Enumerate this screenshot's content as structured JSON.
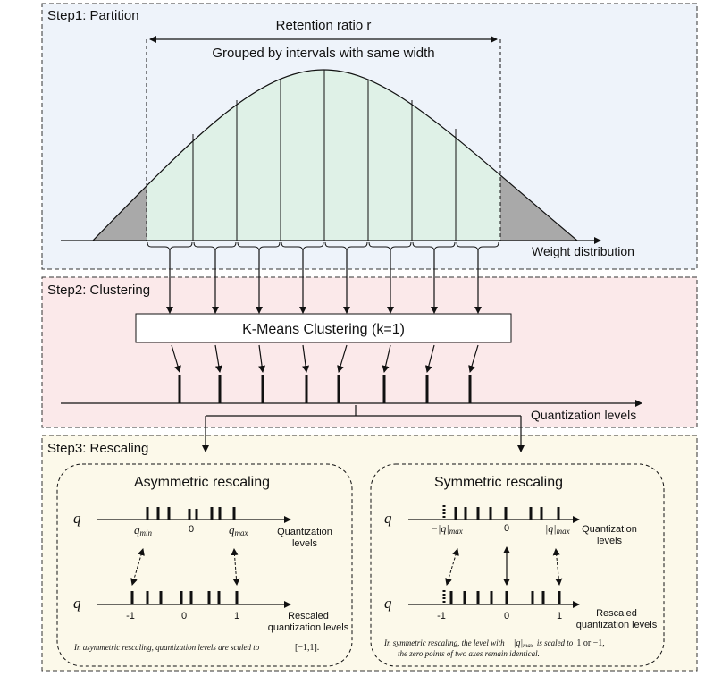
{
  "colors": {
    "step1_bg": "#eef3fa",
    "step2_bg": "#fbe9ea",
    "step3_bg": "#fcf9ea",
    "curve_fill": "#dff1e7",
    "tail_fill": "#a9a9a9"
  },
  "step1": {
    "title": "Step1: Partition",
    "retention_label": "Retention ratio r",
    "grouped_label": "Grouped by intervals with same width",
    "axis_label": "Weight distribution"
  },
  "step2": {
    "title": "Step2: Clustering",
    "kmeans_label": "K-Means Clustering (k=1)",
    "axis_label": "Quantization levels"
  },
  "step3": {
    "title": "Step3: Rescaling",
    "asym": {
      "title": "Asymmetric rescaling",
      "q": "q",
      "q2": "q",
      "qmin": "q",
      "qmin_sub": "min",
      "zero": "0",
      "qmax": "q",
      "qmax_sub": "max",
      "quant_label_1": "Quantization",
      "quant_label_2": "levels",
      "neg1": "-1",
      "zero2": "0",
      "one": "1",
      "rescaled_1": "Rescaled",
      "rescaled_2": "quantization levels",
      "caption_text": "In asymmetric rescaling, quantization levels are scaled to",
      "caption_range": "[−1,1]."
    },
    "sym": {
      "title": "Symmetric rescaling",
      "q": "q",
      "q2": "q",
      "neg_qmax": "−|q|",
      "neg_qmax_sub": "max",
      "zero": "0",
      "qmax": "|q|",
      "qmax_sub": "max",
      "quant_label_1": "Quantization",
      "quant_label_2": "levels",
      "neg1": "-1",
      "zero2": "0",
      "one": "1",
      "rescaled_1": "Rescaled",
      "rescaled_2": "quantization levels",
      "caption_line1_a": "In symmetric rescaling, the level with",
      "caption_line1_b": "|q|",
      "caption_line1_b_sub": "max",
      "caption_line1_c": "is scaled to",
      "caption_line1_d": "1 or −1,",
      "caption_line2": "the zero points of two axes remain identical."
    }
  }
}
